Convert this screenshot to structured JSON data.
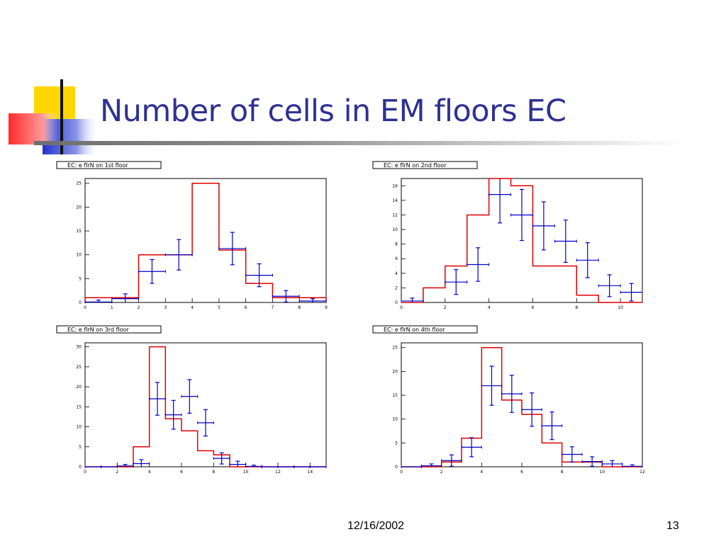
{
  "slide": {
    "title": "Number of cells in EM floors EC",
    "date": "12/16/2002",
    "page_number": "13",
    "title_color": "#2e3192"
  },
  "colors": {
    "histogram_line": "#e00000",
    "data_points": "#0000cc",
    "logo_yellow": "#ffd600",
    "logo_red": "#ff2a2a",
    "logo_blue": "#2233cc"
  },
  "chart_data": [
    {
      "type": "histogram",
      "title": "EC: e flrN on 1st floor",
      "xlim": [
        0,
        9
      ],
      "ylim": [
        0,
        26
      ],
      "xticks": [
        0,
        1,
        2,
        3,
        4,
        5,
        6,
        7,
        8,
        9
      ],
      "yticks": [
        0,
        5,
        10,
        15,
        20,
        25
      ],
      "histogram": {
        "edges": [
          0,
          1,
          2,
          3,
          4,
          5,
          6,
          7,
          8,
          9
        ],
        "values": [
          1,
          1,
          10,
          10,
          25,
          11,
          4,
          1,
          1
        ]
      },
      "points": [
        {
          "x": 0.5,
          "y": 0.1,
          "xerr": 0.5,
          "yerr": 0.4
        },
        {
          "x": 1.5,
          "y": 0.8,
          "xerr": 0.5,
          "yerr": 1.0
        },
        {
          "x": 2.5,
          "y": 6.5,
          "xerr": 0.5,
          "yerr": 2.5
        },
        {
          "x": 3.5,
          "y": 10,
          "xerr": 0.5,
          "yerr": 3.2
        },
        {
          "x": 5.5,
          "y": 11.3,
          "xerr": 0.5,
          "yerr": 3.4
        },
        {
          "x": 6.5,
          "y": 5.7,
          "xerr": 0.5,
          "yerr": 2.4
        },
        {
          "x": 7.5,
          "y": 1.3,
          "xerr": 0.5,
          "yerr": 1.2
        },
        {
          "x": 8.5,
          "y": 0.3,
          "xerr": 0.5,
          "yerr": 0.5
        }
      ]
    },
    {
      "type": "histogram",
      "title": "EC: e flrN on 2nd floor",
      "xlim": [
        0,
        11
      ],
      "ylim": [
        0,
        17
      ],
      "xticks": [
        0,
        2,
        4,
        6,
        8,
        10
      ],
      "yticks": [
        0,
        2,
        4,
        6,
        8,
        10,
        12,
        14,
        16
      ],
      "histogram": {
        "edges": [
          0,
          1,
          2,
          3,
          4,
          5,
          6,
          7,
          8,
          9,
          10,
          11
        ],
        "values": [
          0,
          2,
          5,
          12,
          17,
          16,
          5,
          5,
          1,
          0,
          0
        ]
      },
      "points": [
        {
          "x": 0.5,
          "y": 0.2,
          "xerr": 0.5,
          "yerr": 0.4
        },
        {
          "x": 2.5,
          "y": 2.8,
          "xerr": 0.5,
          "yerr": 1.7
        },
        {
          "x": 3.5,
          "y": 5.2,
          "xerr": 0.5,
          "yerr": 2.3
        },
        {
          "x": 4.5,
          "y": 14.8,
          "xerr": 0.5,
          "yerr": 3.9
        },
        {
          "x": 5.5,
          "y": 12,
          "xerr": 0.5,
          "yerr": 3.5
        },
        {
          "x": 6.5,
          "y": 10.5,
          "xerr": 0.5,
          "yerr": 3.3
        },
        {
          "x": 7.5,
          "y": 8.4,
          "xerr": 0.5,
          "yerr": 2.9
        },
        {
          "x": 8.5,
          "y": 5.8,
          "xerr": 0.5,
          "yerr": 2.4
        },
        {
          "x": 9.5,
          "y": 2.3,
          "xerr": 0.5,
          "yerr": 1.5
        },
        {
          "x": 10.5,
          "y": 1.4,
          "xerr": 0.5,
          "yerr": 1.2
        }
      ]
    },
    {
      "type": "histogram",
      "title": "EC: e flrN on 3rd floor",
      "xlim": [
        0,
        15
      ],
      "ylim": [
        0,
        31
      ],
      "xticks": [
        0,
        2,
        4,
        6,
        8,
        10,
        12,
        14
      ],
      "yticks": [
        0,
        5,
        10,
        15,
        20,
        25,
        30
      ],
      "histogram": {
        "edges": [
          0,
          1,
          2,
          3,
          4,
          5,
          6,
          7,
          8,
          9,
          10,
          11,
          12,
          13,
          14,
          15
        ],
        "values": [
          0,
          0,
          0,
          5,
          30,
          12,
          9,
          4,
          3,
          0,
          0,
          0,
          0,
          0,
          0
        ]
      },
      "points": [
        {
          "x": 0.5,
          "y": 0,
          "xerr": 0.5,
          "yerr": 0
        },
        {
          "x": 1.5,
          "y": 0,
          "xerr": 0.5,
          "yerr": 0
        },
        {
          "x": 2.5,
          "y": 0.2,
          "xerr": 0.5,
          "yerr": 0.4
        },
        {
          "x": 3.5,
          "y": 0.8,
          "xerr": 0.5,
          "yerr": 1.0
        },
        {
          "x": 4.5,
          "y": 17,
          "xerr": 0.5,
          "yerr": 4.1
        },
        {
          "x": 5.5,
          "y": 13,
          "xerr": 0.5,
          "yerr": 3.6
        },
        {
          "x": 6.5,
          "y": 17.6,
          "xerr": 0.5,
          "yerr": 4.2
        },
        {
          "x": 7.5,
          "y": 11,
          "xerr": 0.5,
          "yerr": 3.3
        },
        {
          "x": 8.5,
          "y": 2.1,
          "xerr": 0.5,
          "yerr": 1.4
        },
        {
          "x": 9.5,
          "y": 0.6,
          "xerr": 0.5,
          "yerr": 0.8
        },
        {
          "x": 10.5,
          "y": 0.1,
          "xerr": 0.5,
          "yerr": 0.3
        },
        {
          "x": 11.5,
          "y": 0,
          "xerr": 0.5,
          "yerr": 0
        },
        {
          "x": 12.5,
          "y": 0,
          "xerr": 0.5,
          "yerr": 0
        },
        {
          "x": 13.5,
          "y": 0,
          "xerr": 0.5,
          "yerr": 0
        },
        {
          "x": 14.5,
          "y": 0,
          "xerr": 0.5,
          "yerr": 0
        }
      ]
    },
    {
      "type": "histogram",
      "title": "EC: e flrN on 4th floor",
      "xlim": [
        0,
        12
      ],
      "ylim": [
        0,
        26
      ],
      "xticks": [
        0,
        2,
        4,
        6,
        8,
        10,
        12
      ],
      "yticks": [
        0,
        5,
        10,
        15,
        20,
        25
      ],
      "histogram": {
        "edges": [
          0,
          1,
          2,
          3,
          4,
          5,
          6,
          7,
          8,
          9,
          10,
          11,
          12
        ],
        "values": [
          0,
          0,
          1,
          6,
          25,
          14,
          11,
          5,
          1,
          1,
          0,
          0
        ]
      },
      "points": [
        {
          "x": 0.5,
          "y": 0,
          "xerr": 0.5,
          "yerr": 0
        },
        {
          "x": 1.5,
          "y": 0.2,
          "xerr": 0.5,
          "yerr": 0.4
        },
        {
          "x": 2.5,
          "y": 1.3,
          "xerr": 0.5,
          "yerr": 1.2
        },
        {
          "x": 3.5,
          "y": 4.1,
          "xerr": 0.5,
          "yerr": 2.0
        },
        {
          "x": 4.5,
          "y": 17,
          "xerr": 0.5,
          "yerr": 4.1
        },
        {
          "x": 5.5,
          "y": 15.3,
          "xerr": 0.5,
          "yerr": 3.9
        },
        {
          "x": 6.5,
          "y": 12,
          "xerr": 0.5,
          "yerr": 3.5
        },
        {
          "x": 7.5,
          "y": 8.6,
          "xerr": 0.5,
          "yerr": 2.9
        },
        {
          "x": 8.5,
          "y": 2.6,
          "xerr": 0.5,
          "yerr": 1.6
        },
        {
          "x": 9.5,
          "y": 1.1,
          "xerr": 0.5,
          "yerr": 1.0
        },
        {
          "x": 10.5,
          "y": 0.6,
          "xerr": 0.5,
          "yerr": 0.7
        },
        {
          "x": 11.5,
          "y": 0.1,
          "xerr": 0.5,
          "yerr": 0.3
        }
      ]
    }
  ]
}
